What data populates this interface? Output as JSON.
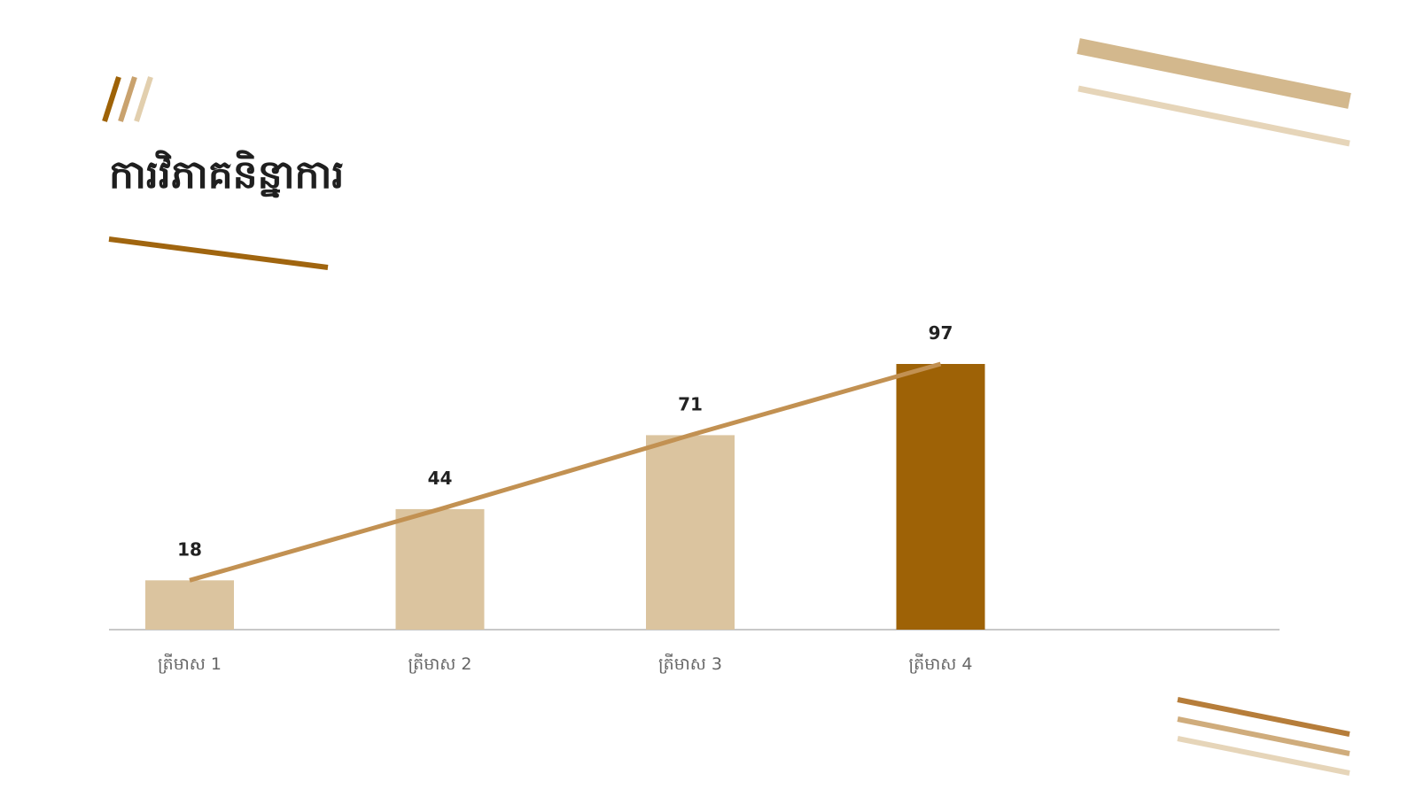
{
  "chart_data": {
    "type": "bar",
    "title": "ការវិភាគនិន្នាការ",
    "categories": [
      "ត្រីមាស 1",
      "ត្រីមាស 2",
      "ត្រីមាស 3",
      "ត្រីមាស 4"
    ],
    "values": [
      18,
      44,
      71,
      97
    ],
    "colors": [
      "#dbc49f",
      "#dbc49f",
      "#dbc49f",
      "#9e6206"
    ],
    "line_color": "#c29152"
  }
}
